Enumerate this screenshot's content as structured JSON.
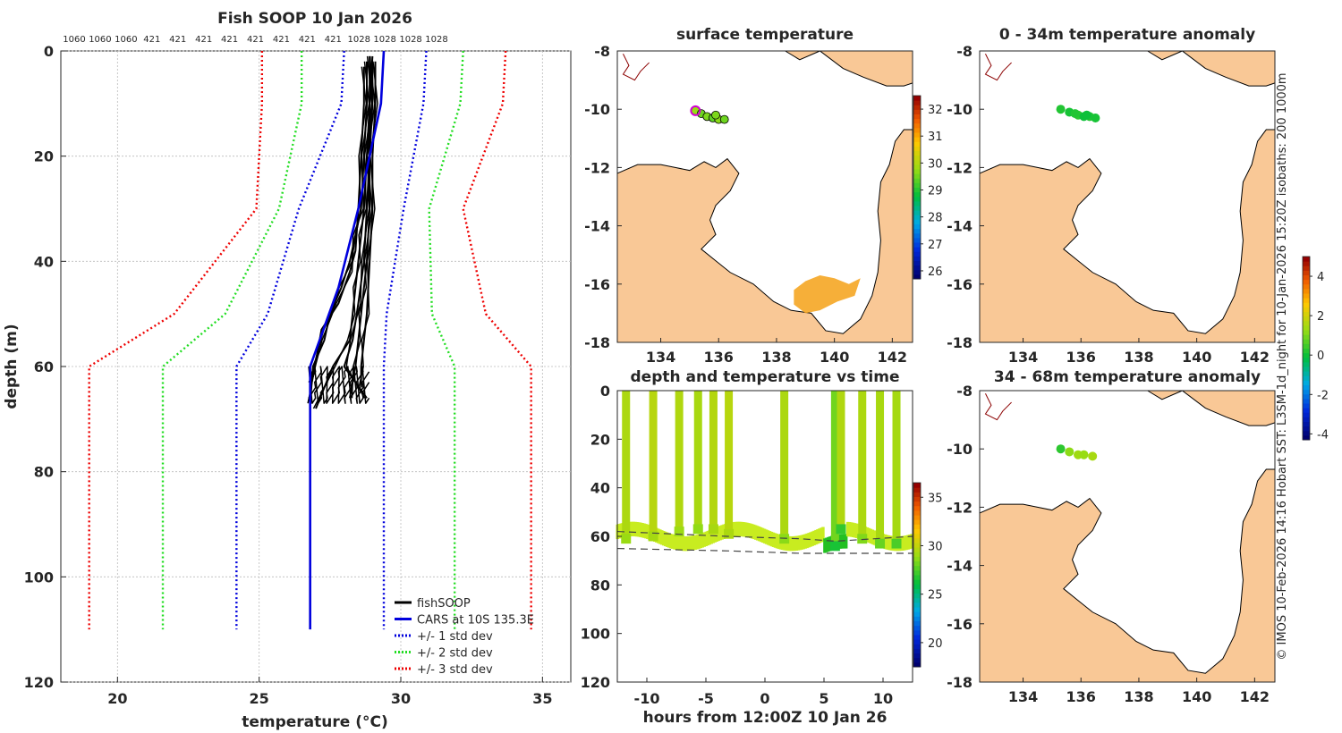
{
  "figure": {
    "credit": "© IMOS 10-Feb-2026 14:16 Hobart SST: L3SM-1d_night for 10-Jan-2026 15:20Z isobaths: 200  1000m"
  },
  "chart_data": [
    {
      "id": "profile",
      "type": "line",
      "title": "Fish SOOP 10 Jan 2026",
      "xlabel": "temperature (°C)",
      "ylabel": "depth (m)",
      "xlim": [
        18,
        36
      ],
      "ylim": [
        0,
        120
      ],
      "y_inverted": true,
      "xticks": [
        20,
        25,
        30,
        35
      ],
      "yticks": [
        0,
        20,
        40,
        60,
        80,
        100,
        120
      ],
      "grid": true,
      "top_labels": [
        "1060",
        "1060",
        "1060",
        "421",
        "421",
        "421",
        "421",
        "421",
        "421",
        "421",
        "421",
        "1028",
        "1028",
        "1028",
        "1028"
      ],
      "legend_position": "bottom-right",
      "legend": [
        {
          "label": "fishSOOP",
          "color": "#000000",
          "style": "solid"
        },
        {
          "label": "CARS at 10S 135.3E",
          "color": "#0000dd",
          "style": "solid"
        },
        {
          "label": "+/- 1 std dev",
          "color": "#0000dd",
          "style": "dotted"
        },
        {
          "label": "+/- 2 std dev",
          "color": "#22dd22",
          "style": "dotted"
        },
        {
          "label": "+/- 3 std dev",
          "color": "#ee0000",
          "style": "dotted"
        }
      ],
      "cars_mean": {
        "temp": [
          29.4,
          29.3,
          28.5,
          27.8,
          26.8,
          26.8
        ],
        "depth": [
          0,
          10,
          30,
          45,
          60,
          110
        ]
      },
      "std_lines": [
        {
          "sign": -1,
          "color": "#0000dd",
          "temp": [
            28.0,
            27.9,
            26.4,
            25.3,
            24.2,
            24.2
          ],
          "depth": [
            0,
            10,
            30,
            50,
            60,
            110
          ]
        },
        {
          "sign": 1,
          "color": "#0000dd",
          "temp": [
            30.9,
            30.8,
            30.1,
            29.5,
            29.4,
            29.4
          ],
          "depth": [
            0,
            10,
            30,
            50,
            60,
            110
          ]
        },
        {
          "sign": -1,
          "color": "#22dd22",
          "temp": [
            26.5,
            26.5,
            25.7,
            23.8,
            21.6,
            21.6
          ],
          "depth": [
            0,
            10,
            30,
            50,
            60,
            110
          ]
        },
        {
          "sign": 1,
          "color": "#22dd22",
          "temp": [
            32.2,
            32.1,
            31.0,
            31.1,
            31.9,
            31.9
          ],
          "depth": [
            0,
            10,
            30,
            50,
            60,
            110
          ]
        },
        {
          "sign": -1,
          "color": "#ee0000",
          "temp": [
            25.1,
            25.1,
            24.9,
            22.0,
            19.0,
            19.0
          ],
          "depth": [
            0,
            10,
            30,
            50,
            60,
            110
          ]
        },
        {
          "sign": 1,
          "color": "#ee0000",
          "temp": [
            33.7,
            33.6,
            32.2,
            33.0,
            34.6,
            34.6
          ],
          "depth": [
            0,
            10,
            30,
            50,
            60,
            110
          ]
        }
      ],
      "fish_profiles": [
        {
          "temp": [
            28.8,
            28.8,
            28.7,
            28.6,
            28.4,
            28.2,
            27.9,
            27.5,
            27.3,
            26.9,
            26.8
          ],
          "depth": [
            2,
            10,
            20,
            30,
            35,
            40,
            45,
            50,
            55,
            60,
            67
          ]
        },
        {
          "temp": [
            29.0,
            29.0,
            28.9,
            28.9,
            28.8,
            28.7,
            28.6,
            28.5,
            28.4,
            28.2
          ],
          "depth": [
            2,
            10,
            20,
            30,
            40,
            45,
            50,
            55,
            60,
            66
          ]
        },
        {
          "temp": [
            28.9,
            28.9,
            28.8,
            28.7,
            28.6,
            28.5,
            28.4,
            28.3,
            28.2,
            27.6,
            27.0
          ],
          "depth": [
            1,
            10,
            20,
            30,
            35,
            40,
            45,
            50,
            55,
            60,
            68
          ]
        },
        {
          "temp": [
            29.1,
            29.1,
            29.0,
            29.0,
            28.9,
            28.8,
            28.7,
            28.6,
            28.6
          ],
          "depth": [
            2,
            10,
            20,
            30,
            40,
            50,
            55,
            60,
            64
          ]
        },
        {
          "temp": [
            28.7,
            28.7,
            28.6,
            28.5,
            28.4,
            28.2,
            27.8,
            27.2,
            26.9
          ],
          "depth": [
            3,
            10,
            20,
            30,
            38,
            42,
            48,
            53,
            62
          ]
        },
        {
          "temp": [
            29.0,
            28.9,
            28.9,
            28.8,
            28.7,
            28.5,
            28.3,
            28.0,
            28.8
          ],
          "depth": [
            1,
            10,
            20,
            30,
            40,
            48,
            55,
            60,
            66
          ]
        }
      ]
    },
    {
      "id": "surface_map",
      "type": "heatmap",
      "title": "surface temperature",
      "xlim": [
        132.5,
        142.7
      ],
      "ylim": [
        -18,
        -8
      ],
      "xticks": [
        134,
        136,
        138,
        140,
        142
      ],
      "yticks": [
        -8,
        -10,
        -12,
        -14,
        -16,
        -18
      ],
      "colorbar_ticks": [
        26,
        27,
        28,
        29,
        30,
        31,
        32
      ],
      "colorbar_range": [
        25.7,
        32.5
      ],
      "track": [
        [
          135.2,
          -10.05
        ],
        [
          135.4,
          -10.15
        ],
        [
          135.6,
          -10.25
        ],
        [
          135.8,
          -10.3
        ],
        [
          136.0,
          -10.35
        ],
        [
          136.2,
          -10.35
        ],
        [
          135.9,
          -10.2
        ]
      ],
      "track_temps": [
        29.8,
        29.5,
        29.6,
        29.4,
        29.7,
        29.5,
        29.6
      ]
    },
    {
      "id": "anomaly_0_34",
      "type": "scatter",
      "title": "0 - 34m temperature anomaly",
      "xlim": [
        132.5,
        142.7
      ],
      "ylim": [
        -18,
        -8
      ],
      "xticks": [
        134,
        136,
        138,
        140,
        142
      ],
      "yticks": [
        -8,
        -10,
        -12,
        -14,
        -16,
        -18
      ],
      "colorbar_ticks": [
        -4,
        -2,
        0,
        2,
        4
      ],
      "colorbar_range": [
        -4.3,
        5.0
      ],
      "points": [
        [
          135.3,
          -10.0
        ],
        [
          135.6,
          -10.1
        ],
        [
          135.9,
          -10.2
        ],
        [
          136.1,
          -10.25
        ],
        [
          136.3,
          -10.25
        ],
        [
          136.5,
          -10.3
        ],
        [
          135.8,
          -10.15
        ],
        [
          136.2,
          -10.2
        ]
      ],
      "values": [
        0.2,
        0.1,
        0.3,
        0.0,
        0.2,
        0.1,
        0.2,
        0.0
      ]
    },
    {
      "id": "anomaly_34_68",
      "type": "scatter",
      "title": "34 - 68m temperature anomaly",
      "xlim": [
        132.5,
        142.7
      ],
      "ylim": [
        -18,
        -8
      ],
      "xticks": [
        134,
        136,
        138,
        140,
        142
      ],
      "yticks": [
        -8,
        -10,
        -12,
        -14,
        -16,
        -18
      ],
      "points": [
        [
          135.3,
          -10.0
        ],
        [
          135.6,
          -10.1
        ],
        [
          135.9,
          -10.2
        ],
        [
          136.1,
          -10.2
        ],
        [
          136.4,
          -10.25
        ]
      ],
      "values": [
        0.3,
        1.2,
        1.4,
        1.3,
        1.5
      ]
    },
    {
      "id": "depth_time",
      "type": "scatter",
      "title": "depth and temperature vs time",
      "xlabel": "hours from 12:00Z 10 Jan 26",
      "xlim": [
        -12.5,
        12.5
      ],
      "ylim": [
        0,
        120
      ],
      "y_inverted": true,
      "xticks": [
        -10,
        -5,
        0,
        5,
        10
      ],
      "yticks": [
        0,
        20,
        40,
        60,
        80,
        100,
        120
      ],
      "colorbar_ticks": [
        20,
        25,
        30,
        35
      ],
      "colorbar_range": [
        17.5,
        36.5
      ],
      "profiles_hours": [
        -11.8,
        -9.5,
        -7.3,
        -5.7,
        -4.4,
        -3.1,
        1.6,
        5.9,
        6.4,
        8.2,
        9.7,
        11.1
      ],
      "bottom_depth": [
        62,
        61,
        59,
        58,
        58,
        60,
        62,
        65,
        58,
        62,
        64,
        64
      ],
      "profile_temps": [
        29.5,
        29.8,
        29.6,
        29.4,
        29.7,
        29.8,
        29.5,
        28.2,
        29.6,
        29.5,
        29.4,
        29.3
      ],
      "bottom_temps": [
        29.0,
        29.3,
        29.1,
        28.8,
        29.4,
        29.5,
        28.7,
        26.5,
        27.0,
        28.5,
        28.0,
        27.5
      ],
      "bathy_dashed": [
        [
          -12.5,
          58
        ],
        [
          -3.2,
          60
        ],
        [
          3,
          61
        ],
        [
          6,
          62
        ],
        [
          12.5,
          60
        ]
      ],
      "bathy_dashed2": [
        [
          -12.5,
          65
        ],
        [
          -3,
          66
        ],
        [
          3,
          67
        ],
        [
          12.5,
          67
        ]
      ]
    }
  ]
}
